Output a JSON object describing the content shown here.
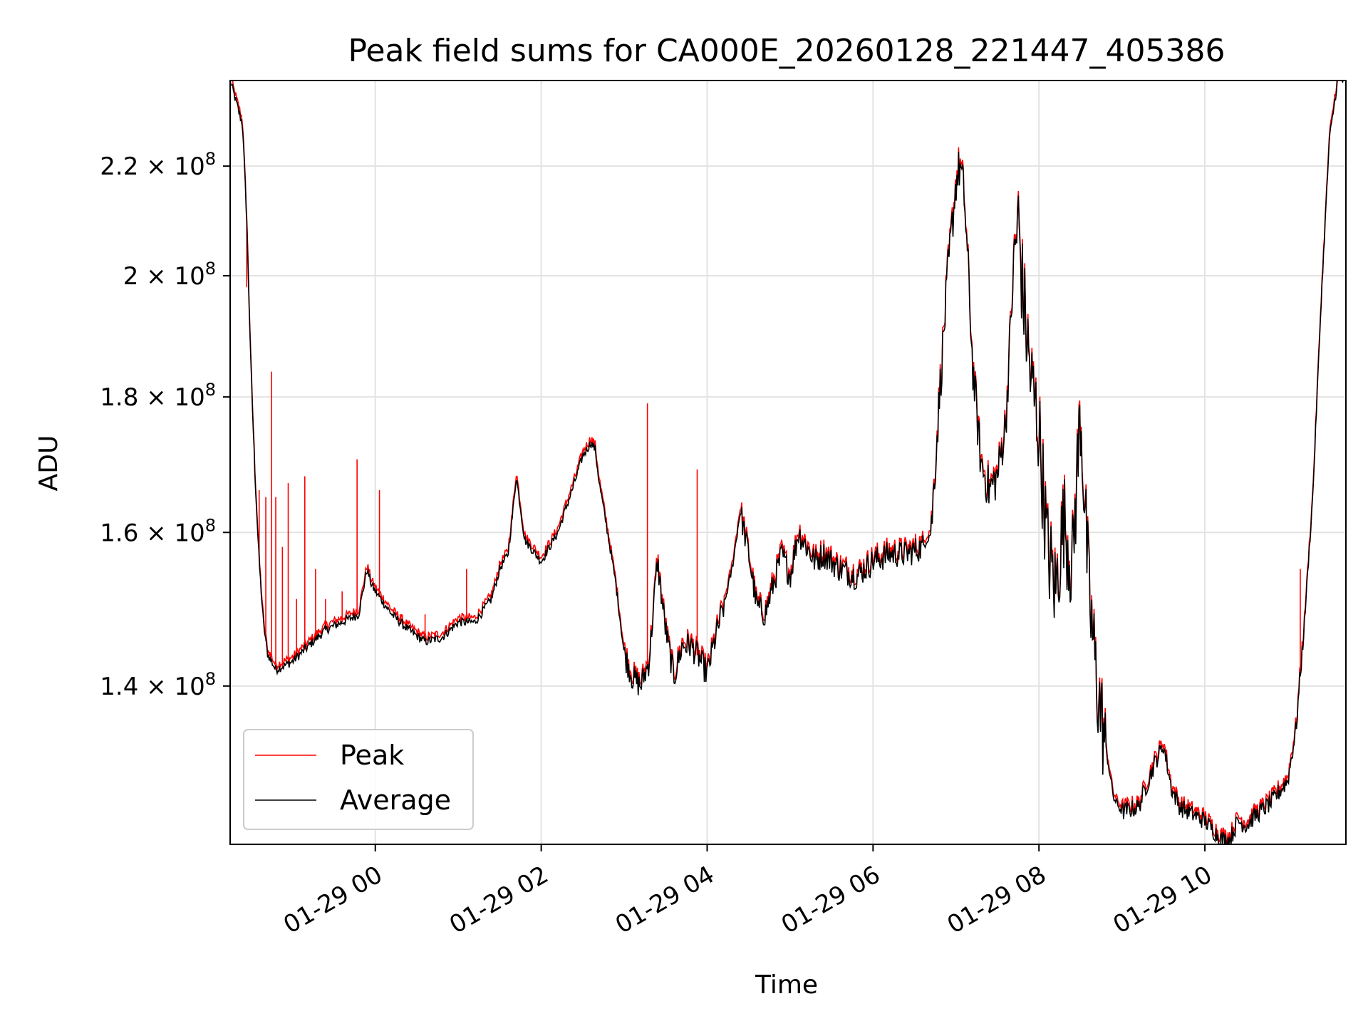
{
  "chart_data": {
    "type": "line",
    "title": "Peak field sums for CA000E_20260128_221447_405386",
    "xlabel": "Time",
    "ylabel": "ADU",
    "y_scale": "log",
    "xlim": [
      -1.75,
      11.7
    ],
    "ylim": [
      122000000,
      237000000
    ],
    "grid": true,
    "legend_position": "lower-left",
    "x_unit": "hours since 2026-01-29 00:00",
    "x_ticks": [
      0,
      2,
      4,
      6,
      8,
      10
    ],
    "x_tick_labels": [
      "01-29 00",
      "01-29 02",
      "01-29 04",
      "01-29 06",
      "01-29 08",
      "01-29 10"
    ],
    "y_ticks": [
      140000000,
      160000000,
      180000000,
      200000000,
      220000000
    ],
    "y_tick_labels": [
      {
        "mantissa": "1.4",
        "exponent": "8"
      },
      {
        "mantissa": "1.6",
        "exponent": "8"
      },
      {
        "mantissa": "1.8",
        "exponent": "8"
      },
      {
        "mantissa": "2",
        "exponent": "8"
      },
      {
        "mantissa": "2.2",
        "exponent": "8"
      }
    ],
    "series": [
      {
        "name": "Average",
        "color": "#000000",
        "x": [
          -1.75,
          -1.6,
          -1.55,
          -1.5,
          -1.45,
          -1.4,
          -1.35,
          -1.3,
          -1.2,
          -1.1,
          -1.0,
          -0.9,
          -0.8,
          -0.6,
          -0.4,
          -0.2,
          -0.1,
          -0.05,
          0.0,
          0.2,
          0.4,
          0.6,
          0.8,
          1.0,
          1.2,
          1.4,
          1.5,
          1.6,
          1.65,
          1.7,
          1.8,
          2.0,
          2.2,
          2.4,
          2.5,
          2.6,
          2.65,
          2.7,
          2.8,
          2.9,
          3.0,
          3.1,
          3.2,
          3.3,
          3.4,
          3.5,
          3.6,
          3.7,
          3.8,
          3.9,
          4.0,
          4.1,
          4.2,
          4.3,
          4.4,
          4.5,
          4.6,
          4.7,
          4.8,
          4.9,
          5.0,
          5.1,
          5.2,
          5.3,
          5.4,
          5.5,
          5.6,
          5.8,
          6.0,
          6.2,
          6.4,
          6.6,
          6.7,
          6.8,
          6.9,
          7.0,
          7.05,
          7.1,
          7.15,
          7.2,
          7.3,
          7.4,
          7.5,
          7.6,
          7.7,
          7.75,
          7.8,
          7.9,
          8.0,
          8.1,
          8.2,
          8.3,
          8.4,
          8.5,
          8.6,
          8.7,
          8.8,
          8.9,
          9.0,
          9.2,
          9.4,
          9.5,
          9.6,
          9.7,
          9.8,
          10.0,
          10.2,
          10.3,
          10.4,
          10.5,
          10.6,
          10.8,
          11.0,
          11.1,
          11.2,
          11.3,
          11.4,
          11.5,
          11.6,
          11.7
        ],
        "values": [
          237000000,
          228000000,
          210000000,
          185000000,
          168000000,
          156000000,
          148000000,
          144000000,
          142000000,
          142500000,
          143000000,
          144000000,
          145000000,
          147000000,
          148000000,
          149000000,
          155000000,
          153000000,
          152000000,
          149000000,
          147000000,
          145500000,
          146000000,
          148000000,
          148000000,
          151000000,
          155000000,
          157000000,
          162000000,
          168000000,
          159000000,
          156000000,
          160000000,
          167000000,
          171000000,
          173000000,
          172000000,
          167000000,
          160000000,
          153000000,
          144000000,
          141000000,
          140000000,
          143000000,
          156000000,
          147000000,
          141000000,
          145000000,
          145000000,
          143500000,
          141500000,
          146000000,
          150000000,
          155000000,
          163000000,
          157000000,
          150000000,
          149000000,
          153000000,
          157000000,
          154000000,
          160000000,
          158000000,
          156000000,
          157000000,
          156000000,
          155000000,
          154000000,
          156000000,
          157000000,
          157000000,
          158000000,
          160000000,
          180000000,
          200000000,
          217000000,
          220000000,
          214000000,
          200000000,
          185000000,
          170000000,
          166000000,
          168000000,
          176000000,
          203000000,
          210000000,
          198000000,
          183000000,
          175000000,
          158000000,
          152000000,
          162000000,
          155000000,
          178000000,
          152000000,
          140000000,
          133000000,
          127000000,
          125500000,
          126000000,
          131000000,
          133000000,
          128000000,
          126000000,
          125500000,
          124500000,
          122500000,
          122500000,
          124500000,
          124000000,
          125000000,
          126500000,
          129000000,
          135000000,
          148000000,
          165000000,
          195000000,
          225000000,
          237000000,
          237000000
        ]
      },
      {
        "name": "Peak",
        "color": "#ff0000",
        "spikes": [
          {
            "x": -1.55,
            "value": 198000000
          },
          {
            "x": -1.4,
            "value": 166000000
          },
          {
            "x": -1.32,
            "value": 165000000
          },
          {
            "x": -1.25,
            "value": 184000000
          },
          {
            "x": -1.2,
            "value": 165000000
          },
          {
            "x": -1.12,
            "value": 158000000
          },
          {
            "x": -1.05,
            "value": 167000000
          },
          {
            "x": -0.95,
            "value": 151000000
          },
          {
            "x": -0.85,
            "value": 168000000
          },
          {
            "x": -0.72,
            "value": 155000000
          },
          {
            "x": -0.6,
            "value": 151000000
          },
          {
            "x": -0.4,
            "value": 152000000
          },
          {
            "x": -0.22,
            "value": 170500000
          },
          {
            "x": 0.05,
            "value": 166000000
          },
          {
            "x": 0.3,
            "value": 149000000
          },
          {
            "x": 0.6,
            "value": 149000000
          },
          {
            "x": 1.1,
            "value": 155000000
          },
          {
            "x": 3.28,
            "value": 179000000
          },
          {
            "x": 3.88,
            "value": 169000000
          },
          {
            "x": 11.15,
            "value": 155000000
          }
        ]
      }
    ]
  }
}
